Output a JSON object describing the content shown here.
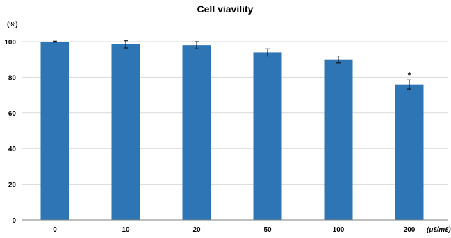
{
  "chart_data": {
    "type": "bar",
    "title": "Cell viavility",
    "ylabel": "(%)",
    "xlabel": "(μℓ/mℓ)",
    "ylim": [
      0,
      100
    ],
    "yticks": [
      0,
      20,
      40,
      60,
      80,
      100
    ],
    "grid": true,
    "categories": [
      "0",
      "10",
      "20",
      "50",
      "100",
      "200"
    ],
    "values": [
      100,
      98.5,
      98,
      94,
      90,
      76
    ],
    "errors": [
      0.3,
      2,
      2,
      2,
      2,
      2.5
    ],
    "annotations": [
      {
        "category": "200",
        "text": "*"
      }
    ],
    "bar_color": "#2E75B6"
  }
}
